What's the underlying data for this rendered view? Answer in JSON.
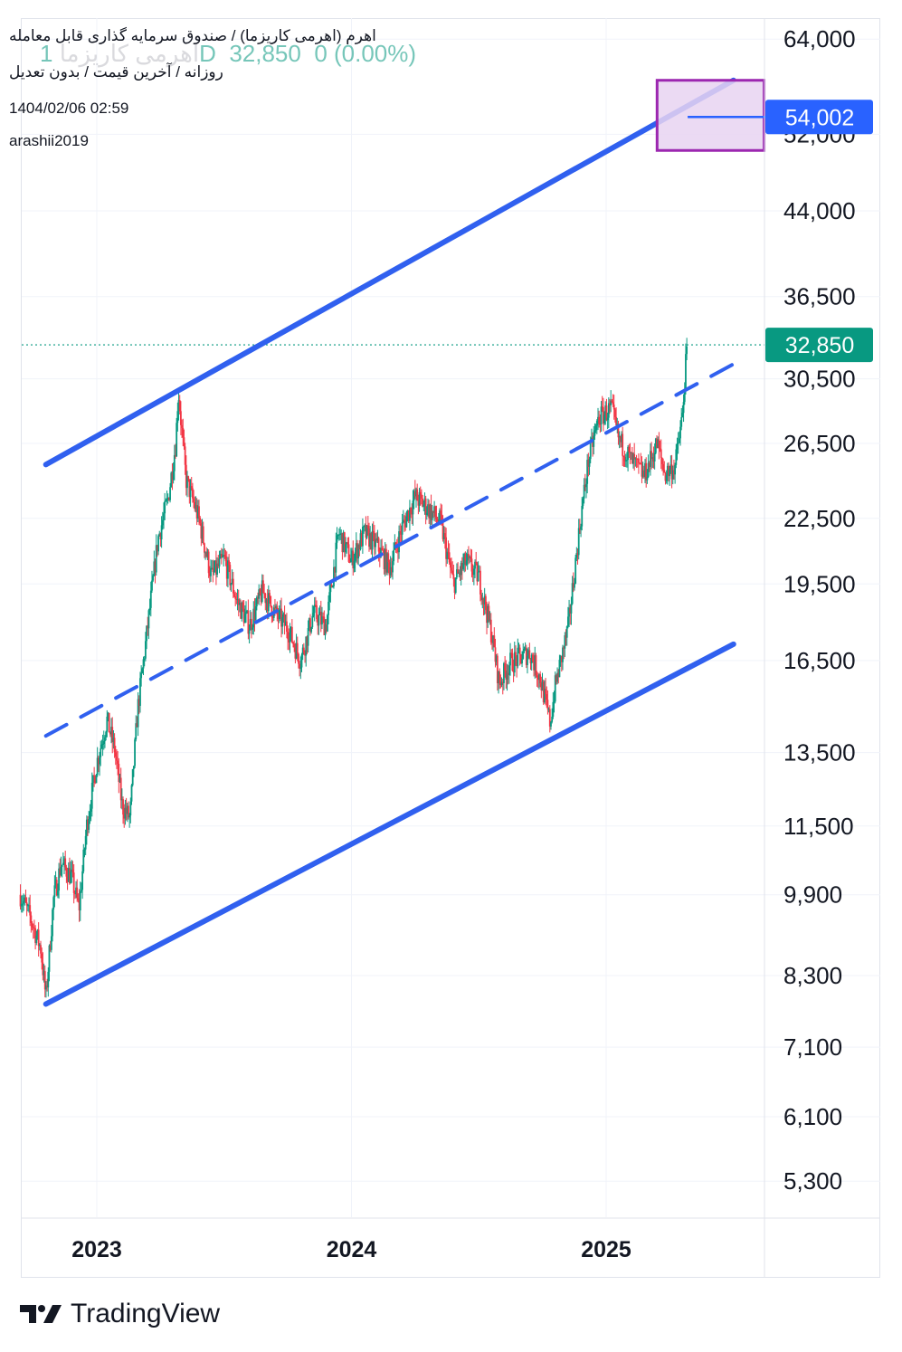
{
  "header": {
    "title": "اهرم (اهرمی کاریزما) / صندوق سرمایه گذاری قابل معامله",
    "subtitle": "روزانه / آخرین قیمت / بدون تعدیل",
    "date": "1404/02/06 02:59",
    "author": "arashii2019",
    "ghost_name": "اهرمی کاریزما",
    "ghost_prefix": "1",
    "ghost_interval": "D",
    "ghost_price": "32,850",
    "ghost_change": "0 (0.00%)"
  },
  "brand": {
    "name": "TradingView",
    "logo_icon": "tradingview-logo-icon"
  },
  "colors": {
    "channel": "#3060ef",
    "up": "#089981",
    "down": "#f23645",
    "last_price_bg": "#089981",
    "target_label_bg": "#2962ff",
    "target_box_fill": "#e8d3f1",
    "target_box_border": "#9c27b0"
  },
  "chart_data": {
    "type": "candlestick",
    "scale": "log",
    "interval": "daily",
    "ylim": [
      4900,
      67000
    ],
    "x_range": [
      2022.7,
      2025.6
    ],
    "y_ticks": [
      64000,
      52000,
      44000,
      36500,
      30500,
      26500,
      22500,
      19500,
      16500,
      13500,
      11500,
      9900,
      8300,
      7100,
      6100,
      5300
    ],
    "y_tick_labels": [
      "64,000",
      "52,000",
      "44,000",
      "36,500",
      "30,500",
      "26,500",
      "22,500",
      "19,500",
      "16,500",
      "13,500",
      "11,500",
      "9,900",
      "8,300",
      "7,100",
      "6,100",
      "5,300"
    ],
    "x_ticks": [
      2023,
      2024,
      2025
    ],
    "x_tick_labels": [
      "2023",
      "2024",
      "2025"
    ],
    "last_price": 32850,
    "last_price_label": "32,850",
    "target_price": 54002,
    "target_price_label": "54,002",
    "target_zone": {
      "x": [
        2025.2,
        2025.62
      ],
      "y": [
        50200,
        58500
      ]
    },
    "channel_lines": [
      {
        "role": "upper",
        "style": "solid",
        "points": [
          [
            2022.8,
            25300
          ],
          [
            2025.5,
            58500
          ]
        ]
      },
      {
        "role": "lower",
        "style": "solid",
        "points": [
          [
            2022.8,
            7800
          ],
          [
            2025.5,
            17100
          ]
        ]
      },
      {
        "role": "middle",
        "style": "dashed",
        "points": [
          [
            2022.8,
            14000
          ],
          [
            2025.5,
            31500
          ]
        ]
      }
    ],
    "price_path": [
      [
        2022.7,
        9900
      ],
      [
        2022.74,
        9400
      ],
      [
        2022.78,
        8800
      ],
      [
        2022.8,
        7900
      ],
      [
        2022.83,
        9800
      ],
      [
        2022.86,
        10600
      ],
      [
        2022.9,
        10300
      ],
      [
        2022.93,
        9600
      ],
      [
        2022.96,
        11500
      ],
      [
        2023.0,
        13200
      ],
      [
        2023.04,
        14500
      ],
      [
        2023.07,
        13600
      ],
      [
        2023.1,
        12000
      ],
      [
        2023.13,
        11700
      ],
      [
        2023.16,
        14800
      ],
      [
        2023.2,
        17800
      ],
      [
        2023.24,
        21500
      ],
      [
        2023.28,
        23500
      ],
      [
        2023.31,
        26500
      ],
      [
        2023.32,
        29800
      ],
      [
        2023.35,
        24500
      ],
      [
        2023.4,
        22500
      ],
      [
        2023.45,
        19800
      ],
      [
        2023.5,
        20600
      ],
      [
        2023.55,
        18800
      ],
      [
        2023.6,
        17800
      ],
      [
        2023.65,
        19200
      ],
      [
        2023.7,
        18300
      ],
      [
        2023.75,
        17700
      ],
      [
        2023.8,
        16500
      ],
      [
        2023.85,
        18300
      ],
      [
        2023.9,
        17800
      ],
      [
        2023.95,
        21800
      ],
      [
        2024.0,
        20500
      ],
      [
        2024.05,
        21800
      ],
      [
        2024.1,
        21200
      ],
      [
        2024.15,
        20200
      ],
      [
        2024.2,
        22100
      ],
      [
        2024.25,
        23600
      ],
      [
        2024.3,
        23000
      ],
      [
        2024.35,
        22300
      ],
      [
        2024.4,
        19500
      ],
      [
        2024.45,
        20500
      ],
      [
        2024.5,
        19800
      ],
      [
        2024.55,
        17500
      ],
      [
        2024.58,
        15700
      ],
      [
        2024.62,
        16400
      ],
      [
        2024.66,
        16600
      ],
      [
        2024.7,
        16800
      ],
      [
        2024.74,
        15900
      ],
      [
        2024.78,
        14400
      ],
      [
        2024.8,
        15600
      ],
      [
        2024.85,
        17700
      ],
      [
        2024.9,
        22500
      ],
      [
        2024.93,
        25500
      ],
      [
        2024.97,
        28000
      ],
      [
        2025.02,
        28600
      ],
      [
        2025.05,
        26700
      ],
      [
        2025.1,
        25500
      ],
      [
        2025.15,
        24700
      ],
      [
        2025.2,
        26500
      ],
      [
        2025.23,
        24800
      ],
      [
        2025.27,
        25200
      ],
      [
        2025.3,
        28200
      ],
      [
        2025.31,
        31000
      ],
      [
        2025.32,
        32850
      ]
    ]
  }
}
